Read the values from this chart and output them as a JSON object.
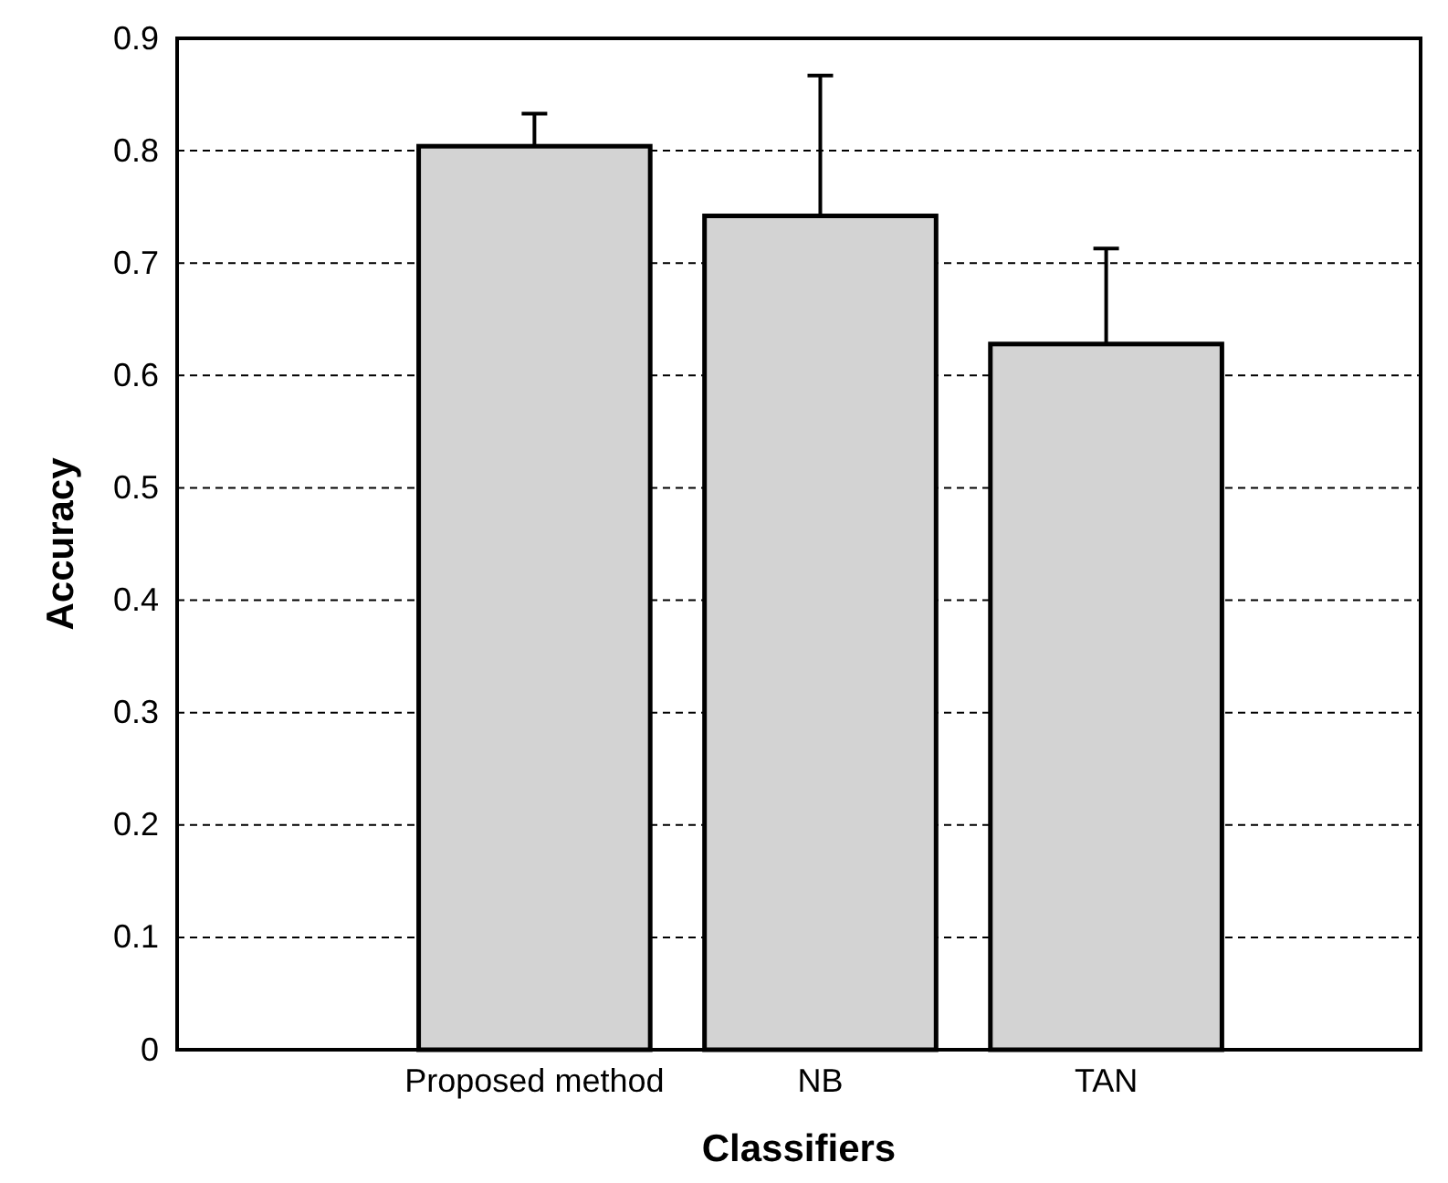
{
  "chart_data": {
    "type": "bar",
    "xlabel": "Classifiers",
    "ylabel": "Accuracy",
    "categories": [
      "Proposed method",
      "NB",
      "TAN"
    ],
    "values": [
      0.804,
      0.742,
      0.628
    ],
    "errors": [
      [
        0.804,
        0.833
      ],
      [
        0.742,
        0.867
      ],
      [
        0.628,
        0.713
      ]
    ],
    "color": "#d3d3d3",
    "ylim": [
      0,
      0.9
    ],
    "yticks": [
      0,
      0.1,
      0.2,
      0.3,
      0.4,
      0.5,
      0.6,
      0.7,
      0.8,
      0.9
    ],
    "grid": "y"
  }
}
